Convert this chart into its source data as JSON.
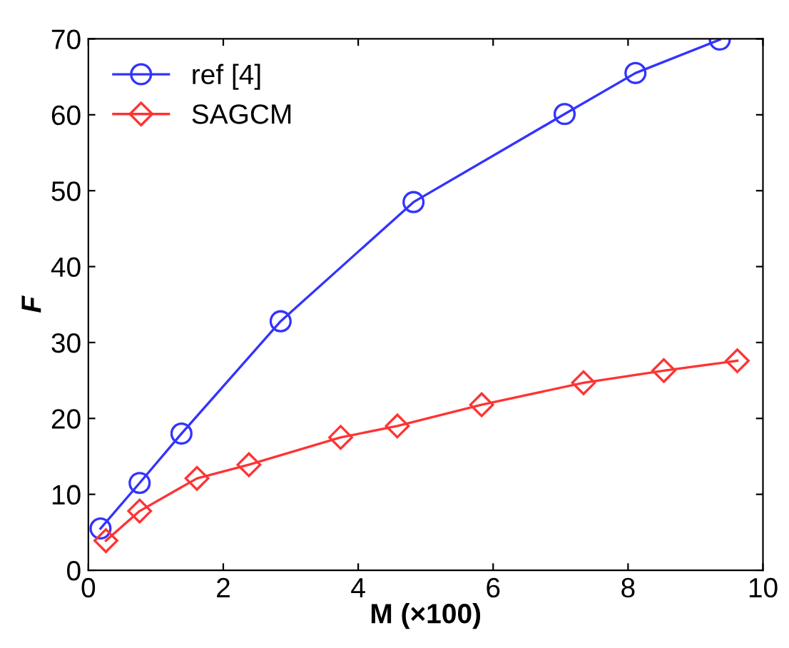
{
  "chart_data": {
    "type": "line",
    "xlabel": "M (×100)",
    "ylabel": "F",
    "xlim": [
      0,
      10
    ],
    "ylim": [
      0,
      70
    ],
    "xticks": [
      0,
      2,
      4,
      6,
      8,
      10
    ],
    "yticks": [
      0,
      10,
      20,
      30,
      40,
      50,
      60,
      70
    ],
    "grid": false,
    "legend": "top left",
    "line_style": "solid",
    "series": [
      {
        "name": "ref [4]",
        "color": "#3333ff",
        "marker": "circle",
        "x": [
          0.18,
          0.76,
          1.38,
          2.85,
          4.82,
          7.06,
          8.11,
          9.36
        ],
        "values": [
          5.5,
          11.5,
          18.0,
          32.8,
          48.5,
          60.1,
          65.5,
          69.9
        ]
      },
      {
        "name": "SAGCM",
        "color": "#ff3333",
        "marker": "diamond",
        "x": [
          0.26,
          0.76,
          1.61,
          2.38,
          3.74,
          4.58,
          5.83,
          7.34,
          8.53,
          9.62
        ],
        "values": [
          3.9,
          7.8,
          12.1,
          13.9,
          17.5,
          19.0,
          21.8,
          24.7,
          26.3,
          27.6
        ]
      }
    ]
  }
}
